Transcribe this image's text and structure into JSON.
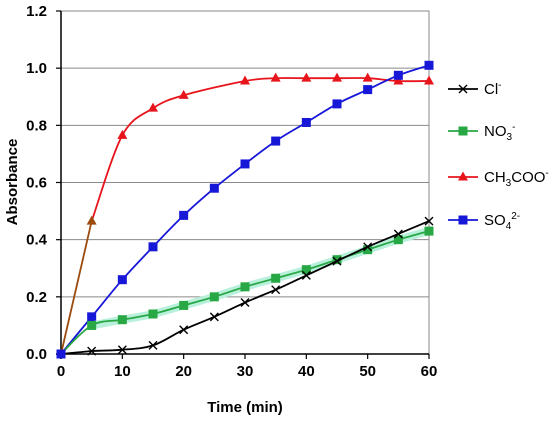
{
  "chart_data": {
    "type": "line",
    "xlabel": "Time (min)",
    "ylabel": "Absorbance",
    "xlim": [
      0,
      60
    ],
    "ylim": [
      0,
      1.2
    ],
    "x_ticks": [
      "0",
      "10",
      "20",
      "30",
      "40",
      "50",
      "60"
    ],
    "y_ticks": [
      "0.0",
      "0.2",
      "0.4",
      "0.6",
      "0.8",
      "1.0",
      "1.2"
    ],
    "grid": "horizontal",
    "legend_position": "right",
    "series": [
      {
        "id": "cl",
        "label_parts": [
          [
            "Cl",
            ""
          ],
          [
            "-",
            "sup"
          ]
        ],
        "color": "#000000",
        "marker": "x",
        "x": [
          0,
          5,
          10,
          15,
          20,
          25,
          30,
          35,
          40,
          45,
          50,
          55,
          60
        ],
        "y": [
          0.0,
          0.01,
          0.015,
          0.03,
          0.085,
          0.13,
          0.18,
          0.225,
          0.275,
          0.325,
          0.375,
          0.42,
          0.465
        ]
      },
      {
        "id": "no3",
        "label_parts": [
          [
            "NO",
            ""
          ],
          [
            "3",
            "sub"
          ],
          [
            "-",
            "sup"
          ]
        ],
        "color": "#28a745",
        "marker": "square",
        "x": [
          0,
          5,
          10,
          15,
          20,
          25,
          30,
          35,
          40,
          45,
          50,
          55,
          60
        ],
        "y": [
          0.0,
          0.1,
          0.12,
          0.14,
          0.17,
          0.2,
          0.235,
          0.265,
          0.295,
          0.33,
          0.365,
          0.4,
          0.43
        ]
      },
      {
        "id": "ch3coo",
        "label_parts": [
          [
            "CH",
            ""
          ],
          [
            "3",
            "sub"
          ],
          [
            "COO",
            ""
          ],
          [
            "-",
            "sup"
          ]
        ],
        "color": "#e8141b",
        "marker": "triangle",
        "x": [
          0,
          5,
          10,
          15,
          20,
          30,
          35,
          40,
          45,
          50,
          55,
          60
        ],
        "y": [
          0.0,
          0.465,
          0.765,
          0.86,
          0.905,
          0.955,
          0.965,
          0.965,
          0.965,
          0.965,
          0.955,
          0.955
        ]
      },
      {
        "id": "so4",
        "label_parts": [
          [
            "SO",
            ""
          ],
          [
            "4",
            "sub"
          ],
          [
            "2-",
            "sup"
          ]
        ],
        "color": "#1717d8",
        "marker": "square",
        "x": [
          0,
          5,
          10,
          15,
          20,
          25,
          30,
          35,
          40,
          45,
          50,
          55,
          60
        ],
        "y": [
          0.0,
          0.13,
          0.26,
          0.375,
          0.485,
          0.58,
          0.665,
          0.745,
          0.81,
          0.875,
          0.925,
          0.975,
          1.01
        ]
      }
    ]
  }
}
